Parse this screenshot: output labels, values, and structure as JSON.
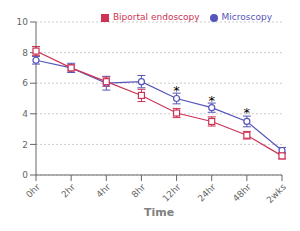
{
  "chart_data": {
    "type": "line",
    "xlabel": "Time",
    "categories": [
      "0hr",
      "2hr",
      "4hr",
      "8hr",
      "12hr",
      "24hr",
      "48hr",
      "2wks"
    ],
    "series": [
      {
        "name": "Microscopy",
        "color": "#5555bb",
        "marker": "circle",
        "values": [
          7.5,
          7.0,
          6.0,
          6.1,
          5.0,
          4.4,
          3.5,
          1.6
        ],
        "errors": [
          0.25,
          0.3,
          0.45,
          0.4,
          0.35,
          0.3,
          0.35,
          0.2
        ]
      },
      {
        "name": "Biportal endoscopy",
        "color": "#cc3355",
        "marker": "square",
        "values": [
          8.1,
          7.0,
          6.1,
          5.2,
          4.05,
          3.5,
          2.6,
          1.25
        ],
        "errors": [
          0.3,
          0.2,
          0.3,
          0.4,
          0.3,
          0.3,
          0.25,
          0.2
        ]
      }
    ],
    "annotations": [
      {
        "text": "*",
        "x": "12hr",
        "y": 5.6
      },
      {
        "text": "*",
        "x": "24hr",
        "y": 5.0
      },
      {
        "text": "*",
        "x": "48hr",
        "y": 4.2
      }
    ],
    "ylim": [
      0,
      10
    ],
    "yticks": [
      0,
      2,
      4,
      6,
      8,
      10
    ],
    "grid": "y",
    "legend": "upper right"
  }
}
